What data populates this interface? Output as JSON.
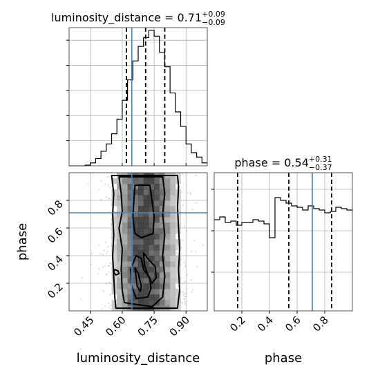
{
  "chart_data": [
    {
      "panel": "luminosity_distance-1d",
      "type": "histogram",
      "title": {
        "param": "luminosity_distance",
        "median": "0.71",
        "plus": "+0.09",
        "minus": "−0.09"
      },
      "xlim": [
        0.35,
        1.0
      ],
      "bin_edges": [
        0.35,
        0.375,
        0.4,
        0.425,
        0.45,
        0.475,
        0.5,
        0.525,
        0.55,
        0.575,
        0.6,
        0.625,
        0.65,
        0.675,
        0.7,
        0.725,
        0.75,
        0.775,
        0.8,
        0.825,
        0.85,
        0.875,
        0.9,
        0.925,
        0.95,
        0.975,
        1.0
      ],
      "counts": [
        0,
        0,
        0,
        0.005,
        0.02,
        0.05,
        0.1,
        0.15,
        0.22,
        0.32,
        0.45,
        0.59,
        0.72,
        0.82,
        0.88,
        0.93,
        0.89,
        0.78,
        0.68,
        0.5,
        0.37,
        0.27,
        0.15,
        0.09,
        0.06,
        0.02
      ],
      "quantiles": [
        0.62,
        0.71,
        0.8
      ],
      "truth": 0.645
    },
    {
      "panel": "phase-1d",
      "type": "histogram",
      "title": {
        "param": "phase",
        "median": "0.54",
        "plus": "+0.31",
        "minus": "−0.37"
      },
      "xlim": [
        0.0,
        1.0
      ],
      "xlabel": "phase",
      "xticks": [
        "0.2",
        "0.4",
        "0.6",
        "0.8"
      ],
      "bin_edges": [
        0.0,
        0.04,
        0.08,
        0.12,
        0.16,
        0.2,
        0.24,
        0.28,
        0.32,
        0.36,
        0.4,
        0.44,
        0.48,
        0.52,
        0.56,
        0.6,
        0.64,
        0.68,
        0.72,
        0.76,
        0.8,
        0.84,
        0.88,
        0.92,
        0.96,
        1.0
      ],
      "counts": [
        0.66,
        0.68,
        0.64,
        0.65,
        0.62,
        0.64,
        0.64,
        0.66,
        0.65,
        0.63,
        0.53,
        0.82,
        0.8,
        0.78,
        0.76,
        0.75,
        0.73,
        0.76,
        0.74,
        0.73,
        0.71,
        0.72,
        0.75,
        0.74,
        0.73
      ],
      "ylim": [
        0,
        1
      ],
      "quantiles": [
        0.17,
        0.54,
        0.85
      ],
      "truth": 0.71
    },
    {
      "panel": "luminosity_distance-vs-phase",
      "type": "scatter-density",
      "xlabel": "luminosity_distance",
      "ylabel": "phase",
      "xlim": [
        0.35,
        1.0
      ],
      "ylim": [
        0.0,
        1.0
      ],
      "xticks": [
        "0.45",
        "0.60",
        "0.75",
        "0.90"
      ],
      "yticks": [
        "0.2",
        "0.4",
        "0.6",
        "0.8"
      ],
      "truth": {
        "x": 0.645,
        "y": 0.71
      },
      "density_x_center": 0.71,
      "density_x_sigma": 0.09,
      "contours": [
        [
          [
            0.55,
            0.98
          ],
          [
            0.56,
            0.85
          ],
          [
            0.555,
            0.7
          ],
          [
            0.56,
            0.55
          ],
          [
            0.555,
            0.4
          ],
          [
            0.56,
            0.25
          ],
          [
            0.565,
            0.1
          ],
          [
            0.57,
            0.02
          ],
          [
            0.86,
            0.02
          ],
          [
            0.87,
            0.15
          ],
          [
            0.865,
            0.3
          ],
          [
            0.87,
            0.45
          ],
          [
            0.865,
            0.6
          ],
          [
            0.86,
            0.75
          ],
          [
            0.865,
            0.9
          ],
          [
            0.86,
            0.98
          ]
        ],
        [
          [
            0.585,
            0.97
          ],
          [
            0.595,
            0.85
          ],
          [
            0.6,
            0.72
          ],
          [
            0.585,
            0.6
          ],
          [
            0.6,
            0.45
          ],
          [
            0.595,
            0.3
          ],
          [
            0.6,
            0.15
          ],
          [
            0.61,
            0.06
          ],
          [
            0.74,
            0.03
          ],
          [
            0.79,
            0.1
          ],
          [
            0.8,
            0.25
          ],
          [
            0.79,
            0.4
          ],
          [
            0.8,
            0.55
          ],
          [
            0.79,
            0.7
          ],
          [
            0.8,
            0.85
          ],
          [
            0.79,
            0.97
          ]
        ],
        [
          [
            0.66,
            0.91
          ],
          [
            0.655,
            0.8
          ],
          [
            0.65,
            0.68
          ],
          [
            0.66,
            0.56
          ],
          [
            0.69,
            0.53
          ],
          [
            0.745,
            0.56
          ],
          [
            0.75,
            0.68
          ],
          [
            0.74,
            0.8
          ],
          [
            0.73,
            0.91
          ]
        ],
        [
          [
            0.64,
            0.3
          ],
          [
            0.645,
            0.18
          ],
          [
            0.665,
            0.09
          ],
          [
            0.72,
            0.1
          ],
          [
            0.735,
            0.16
          ],
          [
            0.73,
            0.24
          ],
          [
            0.7,
            0.3
          ],
          [
            0.69,
            0.38
          ],
          [
            0.665,
            0.4
          ]
        ],
        [
          [
            0.7,
            0.42
          ],
          [
            0.72,
            0.38
          ],
          [
            0.755,
            0.32
          ],
          [
            0.76,
            0.24
          ],
          [
            0.74,
            0.2
          ],
          [
            0.72,
            0.26
          ],
          [
            0.705,
            0.33
          ]
        ],
        [
          [
            0.66,
            0.31
          ],
          [
            0.675,
            0.27
          ],
          [
            0.69,
            0.18
          ],
          [
            0.685,
            0.14
          ],
          [
            0.67,
            0.18
          ],
          [
            0.665,
            0.25
          ]
        ],
        [
          [
            0.565,
            0.3
          ],
          [
            0.58,
            0.29
          ],
          [
            0.585,
            0.27
          ],
          [
            0.57,
            0.26
          ],
          [
            0.56,
            0.28
          ]
        ]
      ]
    }
  ]
}
